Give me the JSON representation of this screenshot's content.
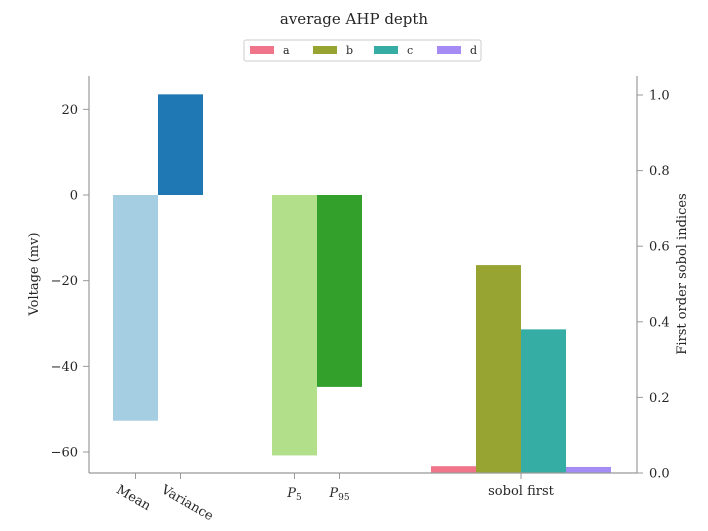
{
  "chart_data": {
    "type": "bar",
    "title": "average AHP depth",
    "ylabel_left": "Voltage (mv)",
    "ylabel_right": "First order sobol indices",
    "ylim_left": [
      -65,
      28
    ],
    "ylim_right": [
      0,
      1.05
    ],
    "yticks_left": [
      20,
      0,
      -20,
      -40,
      -60
    ],
    "yticks_left_labels": [
      "20",
      "0",
      "−20",
      "−40",
      "−60"
    ],
    "yticks_right": [
      0.0,
      0.2,
      0.4,
      0.6,
      0.8,
      1.0
    ],
    "yticks_right_labels": [
      "0.0",
      "0.2",
      "0.4",
      "0.6",
      "0.8",
      "1.0"
    ],
    "grid": false,
    "legend_position": "top-center",
    "legend": [
      {
        "label": "a",
        "color": "#f0758a"
      },
      {
        "label": "b",
        "color": "#97a431"
      },
      {
        "label": "c",
        "color": "#36ada4"
      },
      {
        "label": "d",
        "color": "#a48cf4"
      }
    ],
    "groups": [
      {
        "axis": "left",
        "bars": [
          {
            "label": "Mean",
            "value": -52.7,
            "color": "#a6cee3"
          },
          {
            "label": "Variance",
            "value": 23.5,
            "color": "#1f78b4"
          }
        ]
      },
      {
        "axis": "left",
        "bars": [
          {
            "label": "P5",
            "value": -60.8,
            "color": "#b2df8a"
          },
          {
            "label": "P95",
            "value": -44.8,
            "color": "#33a02c"
          }
        ]
      },
      {
        "axis": "right",
        "label": "sobol first",
        "bars": [
          {
            "label": "a",
            "value": 0.018,
            "color": "#f0758a"
          },
          {
            "label": "b",
            "value": 0.55,
            "color": "#97a431"
          },
          {
            "label": "c",
            "value": 0.38,
            "color": "#36ada4"
          },
          {
            "label": "d",
            "value": 0.016,
            "color": "#a48cf4"
          }
        ]
      }
    ]
  }
}
